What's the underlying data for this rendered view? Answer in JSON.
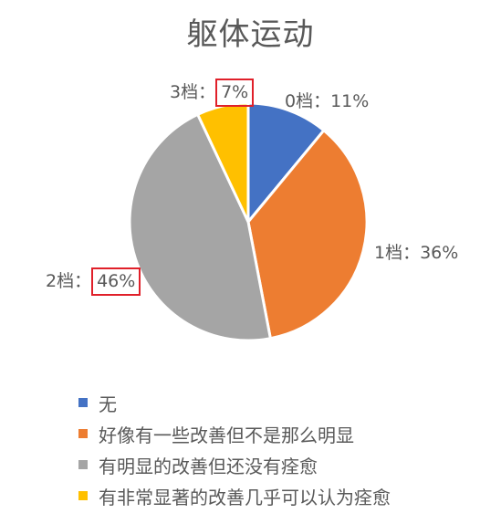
{
  "chart_data": {
    "type": "pie",
    "title": "躯体运动",
    "categories": [
      "0档",
      "1档",
      "2档",
      "3档"
    ],
    "values": [
      11,
      36,
      46,
      7
    ],
    "unit": "%",
    "label_separator": "：",
    "colors": [
      "#4472C4",
      "#ED7D31",
      "#A5A5A5",
      "#FFC000"
    ],
    "highlighted": [
      "2档",
      "3档"
    ],
    "highlight_color": "#E0202A",
    "legend_position": "bottom",
    "legend": [
      {
        "label": "无",
        "color": "#4472C4"
      },
      {
        "label": "好像有一些改善但不是那么明显",
        "color": "#ED7D31"
      },
      {
        "label": "有明显的改善但还没有痊愈",
        "color": "#A5A5A5"
      },
      {
        "label": "有非常显著的改善几乎可以认为痊愈",
        "color": "#FFC000"
      }
    ]
  },
  "labels": {
    "slice0": {
      "category": "0档：",
      "value": "11%"
    },
    "slice1": {
      "category": "1档：",
      "value": "36%"
    },
    "slice2": {
      "category": "2档：",
      "value": "46%"
    },
    "slice3": {
      "category": "3档：",
      "value": "7%"
    }
  }
}
